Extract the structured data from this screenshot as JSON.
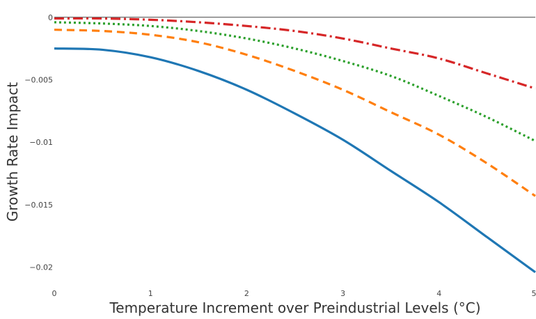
{
  "chart_data": {
    "type": "line",
    "title": "",
    "xlabel": "Temperature Increment over Preindustrial Levels (°C)",
    "ylabel": "Growth Rate Impact",
    "xlim": [
      0,
      5
    ],
    "ylim": [
      -0.0213,
      0.0006
    ],
    "x_ticks": [
      0,
      1,
      2,
      3,
      4,
      5
    ],
    "x_tick_labels": [
      "0",
      "1",
      "2",
      "3",
      "4",
      "5"
    ],
    "y_ticks": [
      0,
      -0.005,
      -0.01,
      -0.015,
      -0.02
    ],
    "y_tick_labels": [
      "0",
      "−0.005",
      "−0.01",
      "−0.015",
      "−0.02"
    ],
    "grid": false,
    "legend": "none",
    "x": [
      0,
      0.5,
      1,
      1.5,
      2,
      2.5,
      3,
      3.5,
      4,
      4.5,
      5
    ],
    "series": [
      {
        "color": "#1f77b4",
        "dash": "solid",
        "values": [
          -0.0025,
          -0.0026,
          -0.0032,
          -0.0043,
          -0.0058,
          -0.0077,
          -0.0098,
          -0.0123,
          -0.0148,
          -0.0176,
          -0.0204
        ]
      },
      {
        "color": "#ff7f0e",
        "dash": "dash",
        "values": [
          -0.001,
          -0.0011,
          -0.0014,
          -0.002,
          -0.003,
          -0.0043,
          -0.0058,
          -0.0076,
          -0.0094,
          -0.0117,
          -0.0143
        ]
      },
      {
        "color": "#2ca02c",
        "dash": "dot",
        "values": [
          -0.0004,
          -0.0005,
          -0.0007,
          -0.0011,
          -0.0017,
          -0.0025,
          -0.0035,
          -0.0047,
          -0.0063,
          -0.008,
          -0.0099
        ]
      },
      {
        "color": "#d62728",
        "dash": "dashdot",
        "values": [
          -0.0001,
          -0.0001,
          -0.0002,
          -0.0004,
          -0.0007,
          -0.0011,
          -0.0017,
          -0.0025,
          -0.0033,
          -0.0045,
          -0.0057
        ]
      }
    ]
  }
}
